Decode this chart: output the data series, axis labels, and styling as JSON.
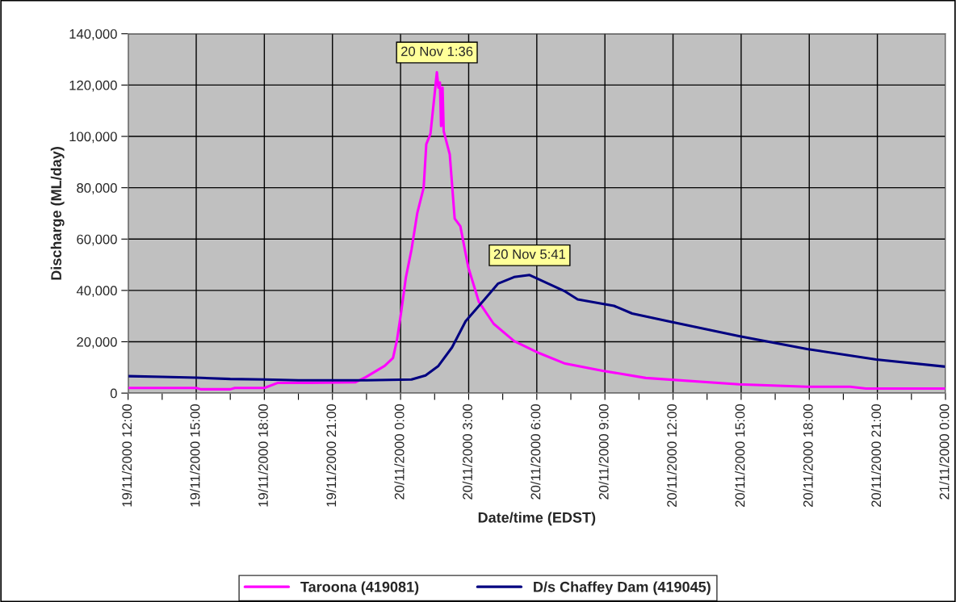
{
  "chart_data": {
    "type": "line",
    "xlabel": "Date/time (EDST)",
    "ylabel": "Discharge (ML/day)",
    "xlim": [
      "2000-11-19T12:00",
      "2000-11-21T00:00"
    ],
    "xticks": [
      {
        "value": "2000-11-19T12:00",
        "label": "19/11/2000 12:00"
      },
      {
        "value": "2000-11-19T13:30",
        "label": null
      },
      {
        "value": "2000-11-19T15:00",
        "label": "19/11/2000 15:00"
      },
      {
        "value": "2000-11-19T16:30",
        "label": null
      },
      {
        "value": "2000-11-19T18:00",
        "label": "19/11/2000 18:00"
      },
      {
        "value": "2000-11-19T19:30",
        "label": null
      },
      {
        "value": "2000-11-19T21:00",
        "label": "19/11/2000 21:00"
      },
      {
        "value": "2000-11-19T22:30",
        "label": null
      },
      {
        "value": "2000-11-20T00:00",
        "label": "20/11/2000 0:00"
      },
      {
        "value": "2000-11-20T01:30",
        "label": null
      },
      {
        "value": "2000-11-20T03:00",
        "label": "20/11/2000 3:00"
      },
      {
        "value": "2000-11-20T04:30",
        "label": null
      },
      {
        "value": "2000-11-20T06:00",
        "label": "20/11/2000 6:00"
      },
      {
        "value": "2000-11-20T07:30",
        "label": null
      },
      {
        "value": "2000-11-20T09:00",
        "label": "20/11/2000 9:00"
      },
      {
        "value": "2000-11-20T10:30",
        "label": null
      },
      {
        "value": "2000-11-20T12:00",
        "label": "20/11/2000 12:00"
      },
      {
        "value": "2000-11-20T13:30",
        "label": null
      },
      {
        "value": "2000-11-20T15:00",
        "label": "20/11/2000 15:00"
      },
      {
        "value": "2000-11-20T16:30",
        "label": null
      },
      {
        "value": "2000-11-20T18:00",
        "label": "20/11/2000 18:00"
      },
      {
        "value": "2000-11-20T19:30",
        "label": null
      },
      {
        "value": "2000-11-20T21:00",
        "label": "20/11/2000 21:00"
      },
      {
        "value": "2000-11-20T22:30",
        "label": null
      },
      {
        "value": "2000-11-21T00:00",
        "label": "21/11/2000 0:00"
      }
    ],
    "ylim": [
      0,
      140000
    ],
    "yticks": [
      0,
      {
        "value": 20000,
        "label": "20,000"
      },
      {
        "value": 40000,
        "label": "40,000"
      },
      {
        "value": 60000,
        "label": "60,000"
      },
      {
        "value": 80000,
        "label": "80,000"
      },
      {
        "value": 100000,
        "label": "100,000"
      },
      {
        "value": 120000,
        "label": "120,000"
      },
      {
        "value": 140000,
        "label": "140,000"
      }
    ],
    "grid": true,
    "legend": "bottom",
    "series": [
      {
        "name": "Taroona (419081)",
        "color": "#ff00ff",
        "x": [
          "2000-11-19T12:00",
          "2000-11-19T15:00",
          "2000-11-19T15:12",
          "2000-11-19T16:30",
          "2000-11-19T16:42",
          "2000-11-19T18:00",
          "2000-11-19T18:36",
          "2000-11-19T20:00",
          "2000-11-19T22:00",
          "2000-11-19T22:28",
          "2000-11-19T23:18",
          "2000-11-19T23:40",
          "2000-11-19T23:51",
          "2000-11-20T00:02",
          "2000-11-20T00:14",
          "2000-11-20T00:29",
          "2000-11-20T00:44",
          "2000-11-20T01:01",
          "2000-11-20T01:08",
          "2000-11-20T01:19",
          "2000-11-20T01:36",
          "2000-11-20T01:40",
          "2000-11-20T01:44",
          "2000-11-20T01:47",
          "2000-11-20T01:51",
          "2000-11-20T01:54",
          "2000-11-20T02:10",
          "2000-11-20T02:23",
          "2000-11-20T02:38",
          "2000-11-20T02:59",
          "2000-11-20T03:27",
          "2000-11-20T04:06",
          "2000-11-20T05:00",
          "2000-11-20T06:06",
          "2000-11-20T07:15",
          "2000-11-20T08:54",
          "2000-11-20T10:48",
          "2000-11-20T14:54",
          "2000-11-20T17:54",
          "2000-11-20T19:48",
          "2000-11-20T20:30",
          "2000-11-21T00:00"
        ],
        "values": [
          2000,
          2000,
          1500,
          1500,
          2000,
          2000,
          4000,
          4000,
          4200,
          6200,
          10600,
          13700,
          21000,
          32000,
          45000,
          56000,
          70000,
          80000,
          97000,
          101000,
          125000,
          119000,
          121000,
          104000,
          119000,
          102000,
          93000,
          68000,
          65000,
          49000,
          35500,
          27000,
          20300,
          15600,
          11500,
          8700,
          5900,
          3400,
          2500,
          2500,
          1800,
          1800
        ]
      },
      {
        "name": "D/s Chaffey Dam (419045)",
        "color": "#000080",
        "x": [
          "2000-11-19T12:00",
          "2000-11-19T13:30",
          "2000-11-19T15:00",
          "2000-11-19T16:30",
          "2000-11-19T18:00",
          "2000-11-19T19:30",
          "2000-11-19T21:00",
          "2000-11-19T22:30",
          "2000-11-20T00:00",
          "2000-11-20T00:29",
          "2000-11-20T01:06",
          "2000-11-20T01:40",
          "2000-11-20T02:16",
          "2000-11-20T02:52",
          "2000-11-20T03:42",
          "2000-11-20T04:18",
          "2000-11-20T05:00",
          "2000-11-20T05:41",
          "2000-11-20T07:15",
          "2000-11-20T07:48",
          "2000-11-20T09:24",
          "2000-11-20T10:12",
          "2000-11-20T11:54",
          "2000-11-20T14:54",
          "2000-11-20T17:54",
          "2000-11-20T20:57",
          "2000-11-21T00:00"
        ],
        "values": [
          6600,
          6300,
          6000,
          5500,
          5300,
          5000,
          5000,
          5000,
          5200,
          5300,
          6900,
          10600,
          17800,
          28000,
          36500,
          42700,
          45200,
          46000,
          39600,
          36500,
          34000,
          31000,
          27800,
          22200,
          17200,
          13100,
          10300
        ]
      }
    ],
    "annotations": [
      {
        "text": "20 Nov 1:36",
        "x": "2000-11-20T01:36",
        "y": 125000
      },
      {
        "text": "20 Nov 5:41",
        "x": "2000-11-20T05:41",
        "y": 46000
      }
    ]
  }
}
